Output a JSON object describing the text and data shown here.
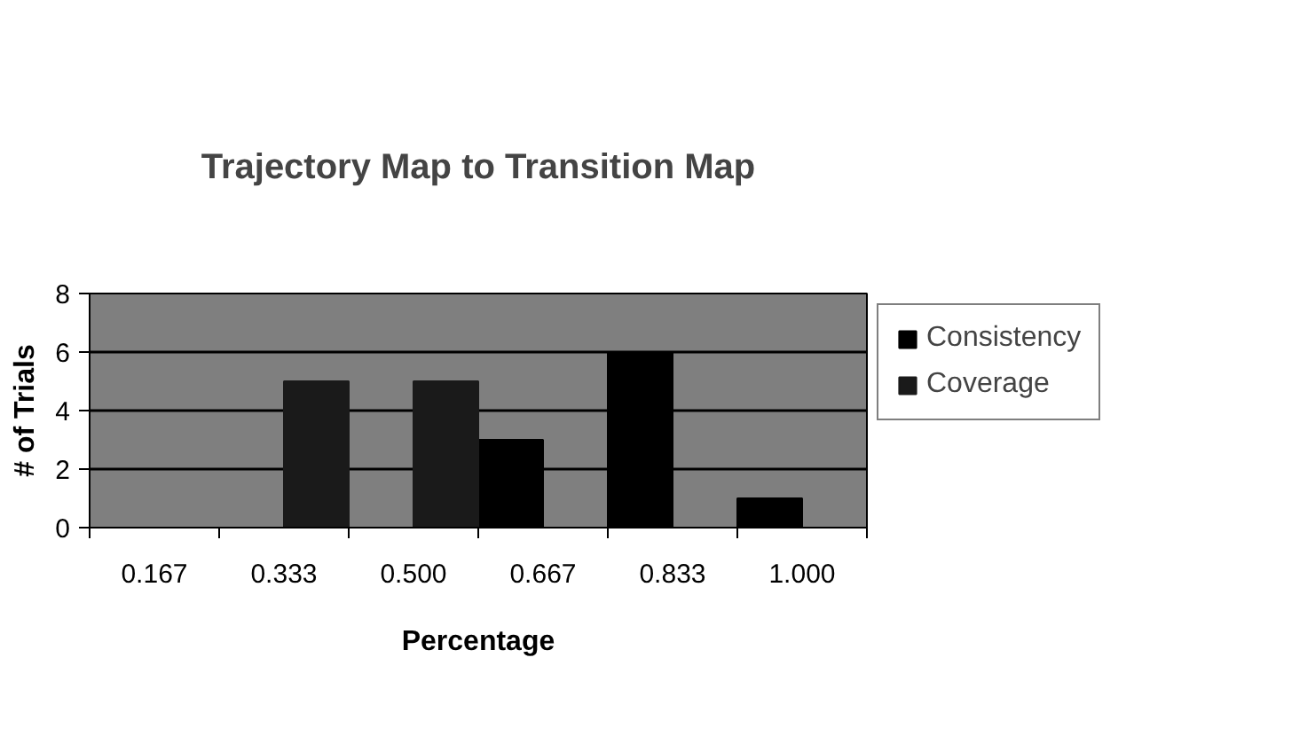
{
  "chart_data": {
    "type": "bar",
    "title": "Trajectory Map to Transition Map",
    "xlabel": "Percentage",
    "ylabel": "# of Trials",
    "categories": [
      "0.167",
      "0.333",
      "0.500",
      "0.667",
      "0.833",
      "1.000"
    ],
    "series": [
      {
        "name": "Consistency",
        "color": "#000000",
        "values": [
          0,
          0,
          0,
          3,
          6,
          1
        ]
      },
      {
        "name": "Coverage",
        "color": "#1a1a1a",
        "values": [
          0,
          5,
          5,
          0,
          0,
          0
        ]
      }
    ],
    "ylim": [
      0,
      8
    ],
    "yticks": [
      0,
      2,
      4,
      6,
      8
    ],
    "grid": "y",
    "legend": "right"
  }
}
